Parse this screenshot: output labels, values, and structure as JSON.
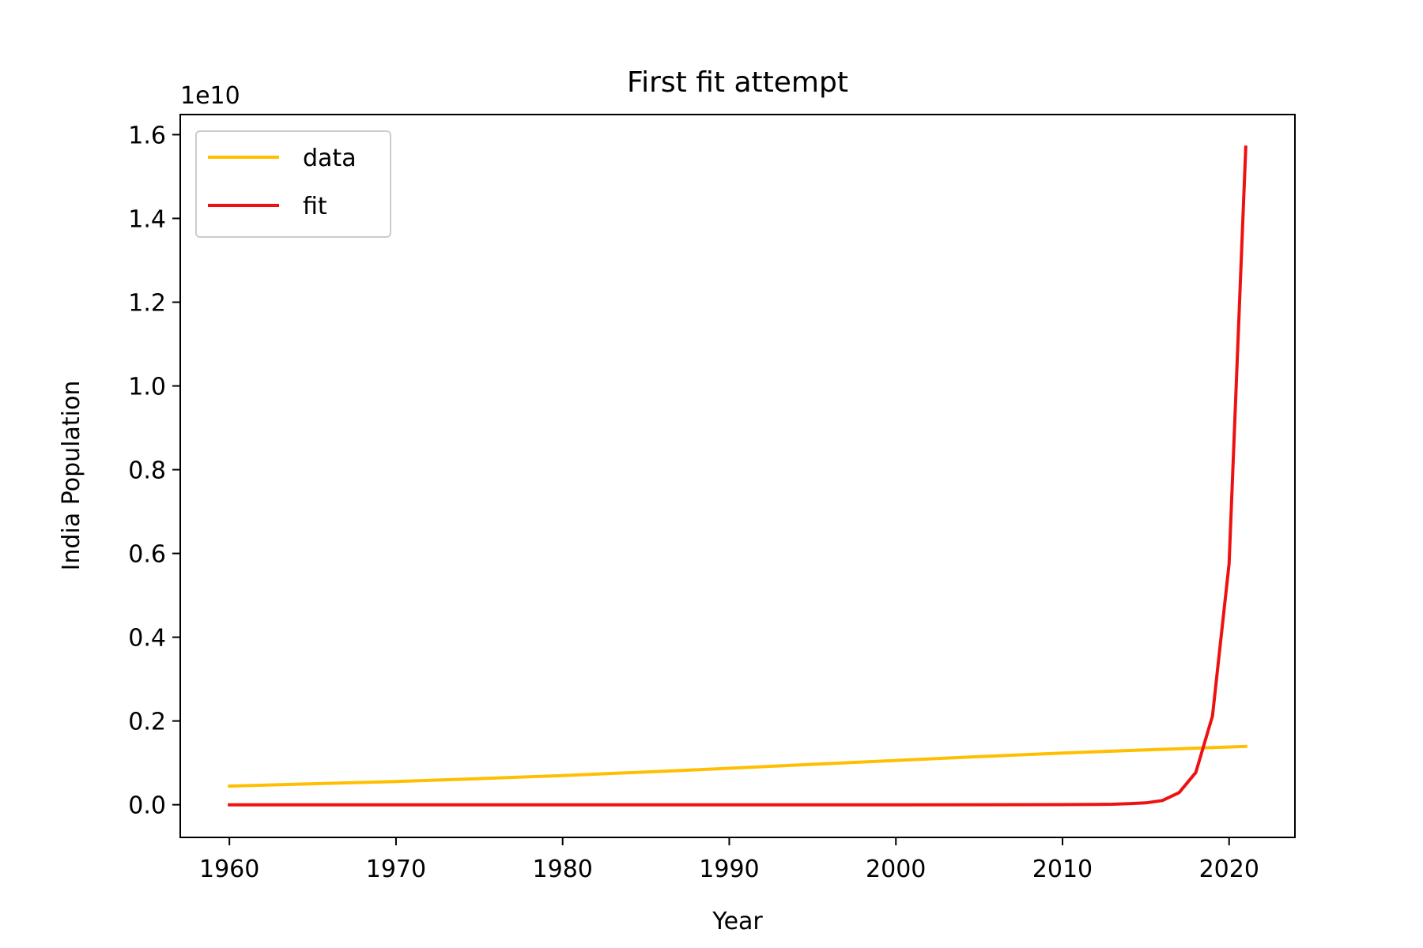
{
  "chart_data": {
    "type": "line",
    "title": "First fit attempt",
    "xlabel": "Year",
    "ylabel": "India Population",
    "y_offset_label": "1e10",
    "xlim": [
      1957.05,
      2023.95
    ],
    "ylim": [
      -0.078,
      1.648
    ],
    "y_scale_multiplier": 10000000000,
    "xticks": [
      1960,
      1970,
      1980,
      1990,
      2000,
      2010,
      2020
    ],
    "xtick_labels": [
      "1960",
      "1970",
      "1980",
      "1990",
      "2000",
      "2010",
      "2020"
    ],
    "yticks": [
      0.0,
      0.2,
      0.4,
      0.6,
      0.8,
      1.0,
      1.2,
      1.4,
      1.6
    ],
    "ytick_labels": [
      "0.0",
      "0.2",
      "0.4",
      "0.6",
      "0.8",
      "1.0",
      "1.2",
      "1.4",
      "1.6"
    ],
    "grid": false,
    "legend_position": "upper-left",
    "series": [
      {
        "name": "data",
        "color": "#ffbf00",
        "x": [
          1960,
          1965,
          1970,
          1975,
          1980,
          1985,
          1990,
          1995,
          2000,
          2005,
          2010,
          2015,
          2021
        ],
        "y": [
          0.0445,
          0.05,
          0.0556,
          0.0623,
          0.0697,
          0.0781,
          0.087,
          0.0964,
          0.1057,
          0.1148,
          0.1234,
          0.131,
          0.1393
        ]
      },
      {
        "name": "fit",
        "color": "#ee1111",
        "x": [
          1960,
          2000,
          2010,
          2012,
          2013,
          2014,
          2015,
          2016,
          2017,
          2018,
          2019,
          2020,
          2021
        ],
        "y": [
          0.0,
          0.0,
          0.0003,
          0.0008,
          0.0012,
          0.0025,
          0.0045,
          0.01,
          0.029,
          0.077,
          0.212,
          0.575,
          1.57
        ]
      }
    ]
  }
}
